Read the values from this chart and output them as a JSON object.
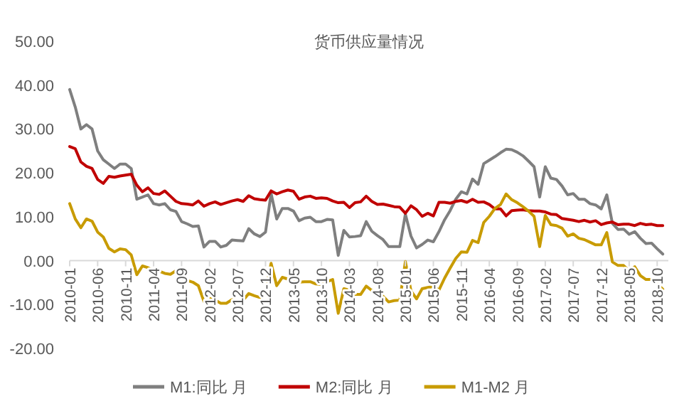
{
  "chart_data": {
    "type": "line",
    "title": "货币供应量情况",
    "categories": [
      "2010-01",
      null,
      null,
      null,
      null,
      "2010-06",
      null,
      null,
      null,
      null,
      "2010-11",
      null,
      null,
      null,
      null,
      "2011-04",
      null,
      null,
      null,
      null,
      "2011-09",
      null,
      null,
      null,
      null,
      "2012-02",
      null,
      null,
      null,
      null,
      "2012-07",
      null,
      null,
      null,
      null,
      "2012-12",
      null,
      null,
      null,
      null,
      "2013-05",
      null,
      null,
      null,
      null,
      "2013-10",
      null,
      null,
      null,
      null,
      "2014-03",
      null,
      null,
      null,
      null,
      "2014-08",
      null,
      null,
      null,
      null,
      "2015-01",
      null,
      null,
      null,
      null,
      "2015-06",
      null,
      null,
      null,
      null,
      "2015-11",
      null,
      null,
      null,
      null,
      "2016-04",
      null,
      null,
      null,
      null,
      "2016-09",
      null,
      null,
      null,
      null,
      "2017-02",
      null,
      null,
      null,
      null,
      "2017-07",
      null,
      null,
      null,
      null,
      "2017-12",
      null,
      null,
      null,
      null,
      "2018-05",
      null,
      null,
      null,
      null,
      "2018-10",
      null
    ],
    "series": [
      {
        "name": "M1:同比 月",
        "color": "#7f7f7f",
        "values": [
          39,
          35,
          30,
          31,
          30,
          25,
          23,
          22,
          21,
          22,
          22,
          21,
          14,
          14.5,
          15,
          13,
          12.7,
          13,
          11.6,
          11.2,
          8.9,
          8.4,
          7.8,
          7.9,
          3.1,
          4.4,
          4.4,
          3.1,
          3.5,
          4.7,
          4.6,
          4.5,
          7.3,
          6.1,
          5.5,
          6.5,
          15.3,
          9.5,
          11.9,
          11.9,
          11.3,
          9.1,
          9.7,
          9.9,
          8.9,
          8.9,
          9.4,
          9.3,
          1.2,
          6.9,
          5.4,
          5.5,
          5.7,
          8.9,
          6.7,
          5.7,
          4.8,
          3.2,
          3.2,
          3.2,
          10.6,
          5.6,
          2.9,
          3.7,
          4.7,
          4.3,
          6.6,
          9.3,
          11.4,
          14,
          15.7,
          15.2,
          18.6,
          17.4,
          22.1,
          22.9,
          23.7,
          24.6,
          25.4,
          25.3,
          24.7,
          23.9,
          22.7,
          21.4,
          14.5,
          21.4,
          18.8,
          18.5,
          17,
          15,
          15.3,
          14,
          14,
          13,
          12.7,
          11.8,
          15,
          8.5,
          7.1,
          7.2,
          6,
          6.6,
          5.1,
          3.9,
          4,
          2.7,
          1.5
        ]
      },
      {
        "name": "M2:同比 月",
        "color": "#c00000",
        "values": [
          26,
          25.5,
          22.5,
          21.5,
          21,
          18.5,
          17.6,
          19.2,
          19,
          19.3,
          19.5,
          19.7,
          17.2,
          15.7,
          16.6,
          15.3,
          15.1,
          15.9,
          14.7,
          13.5,
          13,
          12.9,
          12.7,
          13.6,
          12.4,
          13,
          13.4,
          12.8,
          13.2,
          13.6,
          13.9,
          13.5,
          14.8,
          14.1,
          13.9,
          13.8,
          15.9,
          15.2,
          15.7,
          16.1,
          15.8,
          14,
          14.5,
          14.7,
          14.2,
          14.3,
          14.2,
          13.6,
          13.2,
          13.3,
          12.1,
          13.2,
          13.4,
          14.7,
          13.5,
          12.8,
          12.9,
          12.6,
          12.3,
          12.2,
          10.8,
          12.5,
          11.6,
          10.1,
          10.8,
          10.2,
          13.3,
          13.3,
          13.1,
          13.5,
          13.7,
          13.3,
          14,
          13.3,
          13.4,
          12.8,
          11.8,
          11.8,
          10.2,
          11.4,
          11.5,
          11.6,
          11.4,
          11.3,
          11.3,
          11.1,
          10.6,
          10.5,
          9.6,
          9.4,
          9.2,
          8.9,
          9.2,
          8.8,
          9.1,
          8.2,
          8.6,
          8.8,
          8.2,
          8.3,
          8.3,
          8,
          8.5,
          8.2,
          8.3,
          8,
          8
        ]
      },
      {
        "name": "M1-M2 月",
        "color": "#c89b00",
        "values": [
          13,
          9.5,
          7.5,
          9.5,
          9,
          6.5,
          5.4,
          2.8,
          2,
          2.7,
          2.5,
          1.3,
          -3.2,
          -1.2,
          -1.6,
          -2.3,
          -2.4,
          -2.9,
          -3.1,
          -2.3,
          -4.1,
          -4.5,
          -4.9,
          -5.7,
          -9.3,
          -8.6,
          -9,
          -9.7,
          -9.7,
          -8.9,
          -9.3,
          -9,
          -7.5,
          -8,
          -8.4,
          -7.3,
          -0.6,
          -5.7,
          -3.8,
          -4.2,
          -4.5,
          -4.9,
          -4.8,
          -4.8,
          -5.3,
          -5.4,
          -4.8,
          -4.3,
          -12,
          -6.4,
          -6.7,
          -7.7,
          -7.7,
          -5.8,
          -6.8,
          -7.1,
          -8.1,
          -9.4,
          -9.1,
          -9,
          -0.2,
          -6.9,
          -8.7,
          -6.4,
          -6.1,
          -5.9,
          -6.7,
          -4,
          -1.7,
          0.5,
          2,
          1.9,
          4.6,
          4.1,
          8.7,
          10.1,
          11.9,
          12.8,
          15.2,
          13.9,
          13.2,
          12.3,
          11.3,
          10.1,
          3.2,
          10.3,
          8.2,
          8,
          7.4,
          5.6,
          6.1,
          5.1,
          4.8,
          4.2,
          3.6,
          3.6,
          6.4,
          -0.3,
          -1.1,
          -1.1,
          -2.3,
          -1.4,
          -3.4,
          -4.3,
          -4.3,
          -5.3,
          -6.5
        ]
      }
    ],
    "ylim": [
      -20,
      50
    ],
    "yticks": [
      {
        "value": -20,
        "label": "-20.00"
      },
      {
        "value": -10,
        "label": "-10.00"
      },
      {
        "value": 0,
        "label": "0.00"
      },
      {
        "value": 10,
        "label": "10.00"
      },
      {
        "value": 20,
        "label": "20.00"
      },
      {
        "value": 30,
        "label": "30.00"
      },
      {
        "value": 40,
        "label": "40.00"
      },
      {
        "value": 50,
        "label": "50.00"
      }
    ],
    "grid": false,
    "legend": "bottom",
    "marker": "none",
    "line_style": "solid"
  }
}
